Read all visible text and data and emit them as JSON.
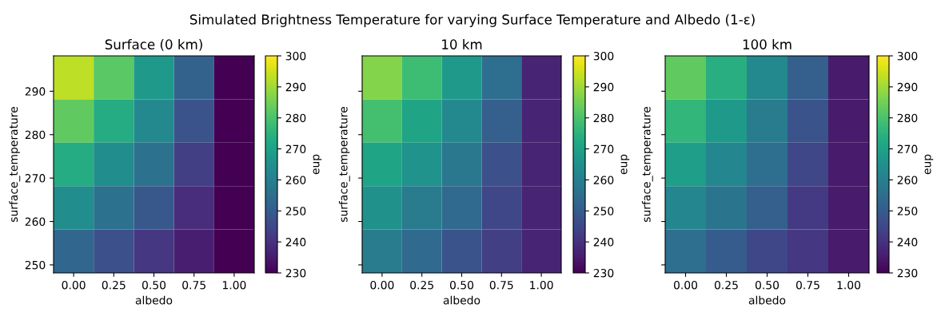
{
  "chart_data": [
    {
      "type": "heatmap",
      "title": "Surface (0 km)",
      "annotations": [
        "Simulated Brightness Temperature for varying Surface Temperature and Albedo (1-ε)"
      ],
      "xlabel": "albedo",
      "ylabel": "surface_temperature",
      "clabel": "eup",
      "x": [
        0,
        0.25,
        0.5,
        0.75,
        1.0
      ],
      "y": [
        293.15,
        283.15,
        273.15,
        263.15,
        253.15
      ],
      "xlim": [
        -0.125,
        1.125
      ],
      "xticks": [
        {
          "value": 0,
          "label": "0.00"
        },
        {
          "value": 0.25,
          "label": "0.25"
        },
        {
          "value": 0.5,
          "label": "0.50"
        },
        {
          "value": 0.75,
          "label": "0.75"
        },
        {
          "value": 1.0,
          "label": "1.00"
        }
      ],
      "ylim": [
        248.15,
        298.15
      ],
      "yticks": [
        250,
        260,
        270,
        280,
        290
      ],
      "clim": [
        230,
        300
      ],
      "cticks": [
        230,
        240,
        250,
        260,
        270,
        280,
        290,
        300
      ],
      "cells": [
        [
          293,
          282,
          268,
          252,
          230
        ],
        [
          283,
          273,
          263,
          248,
          230
        ],
        [
          273,
          264,
          256,
          243,
          230
        ],
        [
          264,
          256,
          249,
          239,
          230
        ],
        [
          253,
          247,
          241,
          236,
          230
        ]
      ]
    },
    {
      "type": "heatmap",
      "title": "10 km",
      "xlabel": "albedo",
      "ylabel": "surface_temperature",
      "clabel": "eup",
      "tick_labels": "x",
      "x": [
        0,
        0.25,
        0.5,
        0.75,
        1.0
      ],
      "y": [
        293.15,
        283.15,
        273.15,
        263.15,
        253.15
      ],
      "xlim": [
        -0.125,
        1.125
      ],
      "xticks": [
        {
          "value": 0,
          "label": "0.00"
        },
        {
          "value": 0.25,
          "label": "0.25"
        },
        {
          "value": 0.5,
          "label": "0.50"
        },
        {
          "value": 0.75,
          "label": "0.75"
        },
        {
          "value": 1.0,
          "label": "1.00"
        }
      ],
      "ylim": [
        248.15,
        298.15
      ],
      "yticks": [
        250,
        260,
        270,
        280,
        290
      ],
      "clim": [
        230,
        300
      ],
      "cticks": [
        230,
        240,
        250,
        260,
        270,
        280,
        290,
        300
      ],
      "cells": [
        [
          287,
          278,
          268,
          255,
          237
        ],
        [
          279,
          271,
          263,
          251,
          237
        ],
        [
          271,
          266,
          258,
          247,
          237
        ],
        [
          265,
          259,
          254,
          245,
          237
        ],
        [
          259,
          254,
          248,
          243,
          237
        ]
      ]
    },
    {
      "type": "heatmap",
      "title": "100 km",
      "xlabel": "albedo",
      "ylabel": "surface_temperature",
      "clabel": "eup",
      "tick_labels": "x",
      "x": [
        0,
        0.25,
        0.5,
        0.75,
        1.0
      ],
      "y": [
        293.15,
        283.15,
        273.15,
        263.15,
        253.15
      ],
      "xlim": [
        -0.125,
        1.125
      ],
      "xticks": [
        {
          "value": 0,
          "label": "0.00"
        },
        {
          "value": 0.25,
          "label": "0.25"
        },
        {
          "value": 0.5,
          "label": "0.50"
        },
        {
          "value": 0.75,
          "label": "0.75"
        },
        {
          "value": 1.0,
          "label": "1.00"
        }
      ],
      "ylim": [
        248.15,
        298.15
      ],
      "yticks": [
        250,
        260,
        270,
        280,
        290
      ],
      "clim": [
        230,
        300
      ],
      "cticks": [
        230,
        240,
        250,
        260,
        270,
        280,
        290,
        300
      ],
      "cells": [
        [
          283,
          274,
          263,
          251,
          235
        ],
        [
          276,
          268,
          259,
          248,
          235
        ],
        [
          269,
          262,
          255,
          245,
          235
        ],
        [
          262,
          257,
          251,
          242,
          235
        ],
        [
          255,
          250,
          245,
          241,
          235
        ]
      ]
    }
  ]
}
